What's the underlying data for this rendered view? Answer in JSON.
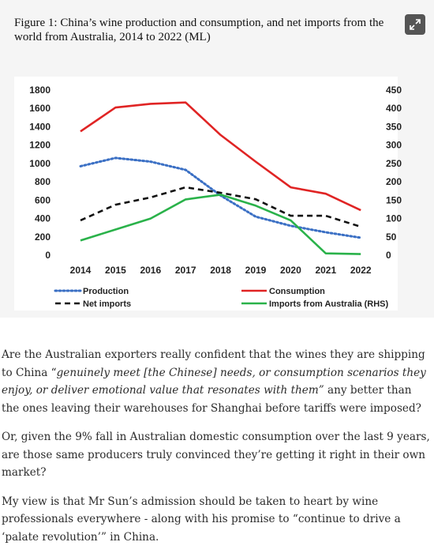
{
  "figure": {
    "title": "Figure 1: China’s wine production and consumption, and net imports from the world from Australia, 2014 to 2022 (ML)"
  },
  "chart_data": {
    "type": "line",
    "x": [
      "2014",
      "2015",
      "2016",
      "2017",
      "2018",
      "2019",
      "2020",
      "2021",
      "2022"
    ],
    "y_left_ticks": [
      "0",
      "200",
      "400",
      "600",
      "800",
      "1000",
      "1200",
      "1400",
      "1600",
      "1800"
    ],
    "y_right_ticks": [
      "0",
      "50",
      "100",
      "150",
      "200",
      "250",
      "300",
      "350",
      "400",
      "450"
    ],
    "ylim_left": [
      0,
      1800
    ],
    "ylim_right": [
      0,
      450
    ],
    "series": [
      {
        "name": "Production",
        "axis": "left",
        "style": "dotted",
        "color": "#3a6fc4",
        "values": [
          970,
          1060,
          1020,
          930,
          650,
          420,
          320,
          250,
          190
        ]
      },
      {
        "name": "Consumption",
        "axis": "left",
        "style": "solid",
        "color": "#e02424",
        "values": [
          1350,
          1610,
          1650,
          1665,
          1310,
          1020,
          740,
          670,
          490
        ]
      },
      {
        "name": "Net imports",
        "axis": "left",
        "style": "dashed",
        "color": "#111111",
        "values": [
          380,
          550,
          630,
          740,
          680,
          610,
          430,
          430,
          310
        ]
      },
      {
        "name": "Imports from Australia (RHS)",
        "axis": "right",
        "style": "solid",
        "color": "#2ab24a",
        "values": [
          40,
          70,
          100,
          152,
          165,
          135,
          95,
          5,
          3
        ]
      }
    ],
    "legend_position": "bottom",
    "grid": false
  },
  "article": {
    "p1_a": "Are the Australian exporters really confident that the wines they are shipping to China “",
    "p1_quote": "genuinely meet [the Chinese] needs, or consumption scenarios they enjoy, or deliver emotional value that resonates with them”",
    "p1_b": " any better than the ones leaving their warehouses for Shanghai before tariffs were imposed?",
    "p2": "Or, given the 9% fall in Australian domestic consumption over the last 9 years, are those same producers truly convinced they’re getting it right in their own market?",
    "p3": "My view is that Mr Sun’s admission should be taken to heart by wine professionals everywhere - along with his promise to “continue to drive a ‘palate revolution’” in China."
  }
}
